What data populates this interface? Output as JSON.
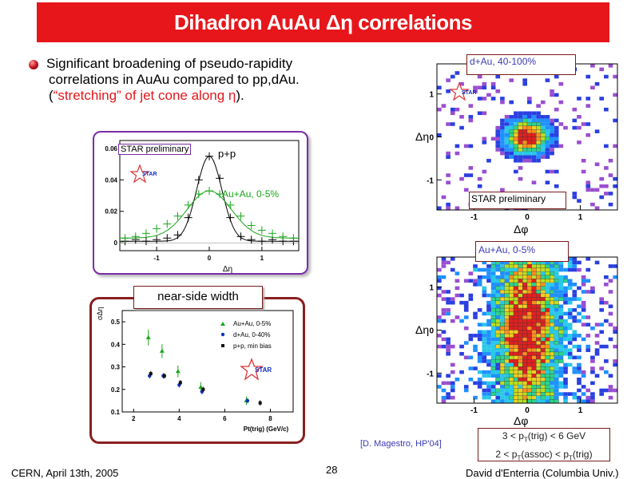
{
  "title": "Dihadron AuAu Δη correlations",
  "bullet": {
    "line1": "Significant broadening of pseudo-rapidity",
    "line2": "correlations in AuAu compared to pp,dAu.",
    "line3_open": "(",
    "line3_red": "“stretching” of jet cone along η",
    "line3_close": ")."
  },
  "plot_deta": {
    "badge": "STAR preliminary",
    "label_pp": "p+p",
    "label_auau": "Au+Au, 0-5%",
    "star_logo": "STAR",
    "y_ticks": [
      "0.06",
      "0.04",
      "0.02",
      "0"
    ],
    "x_ticks": [
      "-1",
      "0",
      "1"
    ],
    "xlabel": "Δη",
    "colors": {
      "pp": "#000000",
      "auau": "#1aa51a"
    }
  },
  "plot_width": {
    "heading": "near-side width",
    "ylabel": "σΔη",
    "xlabel": "Pt(trig) (GeV/c)",
    "y_ticks": [
      "0.5",
      "0.4",
      "0.3",
      "0.2",
      "0.1"
    ],
    "x_ticks": [
      "2",
      "4",
      "6",
      "8"
    ],
    "legend": [
      "Au+Au, 0-5%",
      "d+Au, 0-40%",
      "p+p, min bias"
    ],
    "star_logo": "STAR",
    "colors": {
      "auau": "#1aa51a",
      "dau": "#1030c0",
      "pp": "#111111"
    }
  },
  "map_dau": {
    "label": "d+Au, 40-100%",
    "badge": "STAR preliminary",
    "star_logo": "STAR",
    "y_ticks": [
      "1",
      "0",
      "-1"
    ],
    "x_ticks": [
      "-1",
      "0",
      "1"
    ],
    "ylabel": "Δη",
    "xlabel": "Δφ"
  },
  "map_auau": {
    "label": "Au+Au, 0-5%",
    "y_ticks": [
      "1",
      "0",
      "-1"
    ],
    "x_ticks": [
      "-1",
      "0",
      "1"
    ],
    "ylabel": "Δη",
    "xlabel": "Δφ"
  },
  "reference": "[D. Magestro, HP'04]",
  "cuts": {
    "line1": "3 < p",
    "line1_sub": "T",
    "line1_tail": "(trig) < 6 GeV",
    "line2": "2 < p",
    "line2_sub": "T",
    "line2_mid": "(assoc) < p",
    "line2_sub2": "T",
    "line2_tail": "(trig)"
  },
  "footer": {
    "left": "CERN, April 13th, 2005",
    "page": "28",
    "right": "David d'Enterria (Columbia Univ.)"
  },
  "chart_data": [
    {
      "type": "scatter",
      "xlabel": "Δη",
      "ylim": [
        -0.005,
        0.065
      ],
      "xlim": [
        -1.7,
        1.7
      ],
      "series": [
        {
          "name": "p+p",
          "x": [
            -1.6,
            -1.4,
            -1.2,
            -1.0,
            -0.8,
            -0.6,
            -0.4,
            -0.2,
            0.0,
            0.2,
            0.4,
            0.6,
            0.8,
            1.0,
            1.2,
            1.4,
            1.6
          ],
          "y": [
            0.001,
            0.002,
            0.001,
            0.002,
            0.003,
            0.005,
            0.016,
            0.04,
            0.055,
            0.041,
            0.016,
            0.004,
            0.002,
            0.001,
            0.002,
            0.001,
            0.001
          ]
        },
        {
          "name": "Au+Au, 0-5%",
          "x": [
            -1.6,
            -1.4,
            -1.2,
            -1.0,
            -0.8,
            -0.6,
            -0.4,
            -0.2,
            0.0,
            0.2,
            0.4,
            0.6,
            0.8,
            1.0,
            1.2,
            1.4,
            1.6
          ],
          "y": [
            0.003,
            0.004,
            0.006,
            0.009,
            0.012,
            0.017,
            0.024,
            0.031,
            0.033,
            0.031,
            0.024,
            0.017,
            0.011,
            0.008,
            0.006,
            0.004,
            0.003
          ]
        }
      ]
    },
    {
      "type": "scatter",
      "xlabel": "Pt(trig) (GeV/c)",
      "ylabel": "σΔη",
      "xlim": [
        1.5,
        9.0
      ],
      "ylim": [
        0.1,
        0.55
      ],
      "series": [
        {
          "name": "Au+Au, 0-5%",
          "x": [
            2.7,
            3.3,
            4.0,
            5.0,
            7.0
          ],
          "y": [
            0.43,
            0.37,
            0.28,
            0.21,
            0.15
          ]
        },
        {
          "name": "d+Au, 0-40%",
          "x": [
            2.7,
            3.3,
            4.0,
            5.0,
            7.0
          ],
          "y": [
            0.26,
            0.26,
            0.22,
            0.19,
            0.15
          ]
        },
        {
          "name": "p+p, min bias",
          "x": [
            2.7,
            3.3,
            4.0,
            5.0,
            7.5
          ],
          "y": [
            0.27,
            0.26,
            0.23,
            0.2,
            0.14
          ]
        }
      ]
    },
    {
      "type": "heatmap",
      "title": "d+Au, 40-100%",
      "xlabel": "Δφ",
      "ylabel": "Δη",
      "xlim": [
        -1.7,
        1.7
      ],
      "ylim": [
        -1.7,
        1.7
      ],
      "peak": {
        "x": 0,
        "y": 0,
        "sigma_x": 0.25,
        "sigma_y": 0.25
      }
    },
    {
      "type": "heatmap",
      "title": "Au+Au, 0-5%",
      "xlabel": "Δφ",
      "ylabel": "Δη",
      "xlim": [
        -1.7,
        1.7
      ],
      "ylim": [
        -1.7,
        1.7
      ],
      "peak": {
        "x": 0,
        "y": 0,
        "sigma_x": 0.3,
        "sigma_y": 0.9
      }
    }
  ]
}
